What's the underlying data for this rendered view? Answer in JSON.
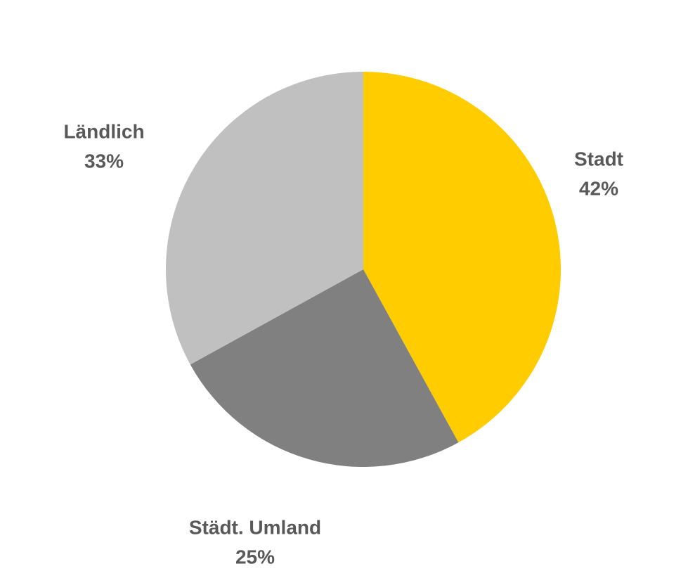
{
  "chart_data": {
    "type": "pie",
    "categories": [
      "Stadt",
      "Städt. Umland",
      "Ländlich"
    ],
    "values": [
      42,
      25,
      33
    ],
    "value_labels": [
      "42%",
      "25%",
      "33%"
    ],
    "colors": [
      "#ffcc00",
      "#808080",
      "#c0c0c0"
    ]
  }
}
